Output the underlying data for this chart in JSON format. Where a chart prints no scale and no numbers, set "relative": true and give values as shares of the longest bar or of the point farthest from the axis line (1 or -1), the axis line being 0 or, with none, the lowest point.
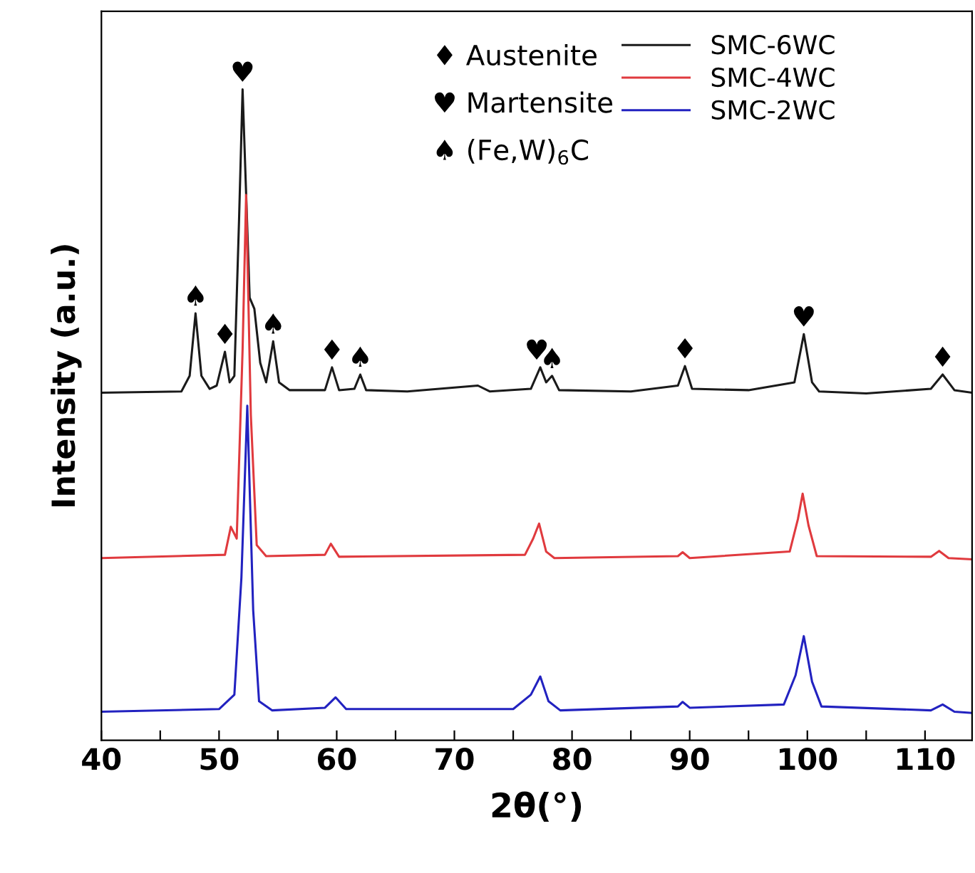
{
  "chart_data": {
    "type": "line",
    "relative": true,
    "xlabel": "2θ(°)",
    "ylabel": "Intensity (a.u.)",
    "xlim": [
      40,
      114
    ],
    "xticks": [
      40,
      {
        "value": 45,
        "label": null
      },
      50,
      {
        "value": 55,
        "label": null
      },
      60,
      {
        "value": 65,
        "label": null
      },
      70,
      {
        "value": 75,
        "label": null
      },
      80,
      {
        "value": 85,
        "label": null
      },
      90,
      {
        "value": 95,
        "label": null
      },
      100,
      {
        "value": 105,
        "label": null
      },
      110
    ],
    "tick_labels": "x",
    "grid": false,
    "legend": "top right",
    "marker": "none",
    "line_style": "solid",
    "series": [
      {
        "name": "SMC-6WC",
        "color": "#1a1a1a",
        "x": [
          40,
          46.8,
          47.5,
          48.0,
          48.5,
          49.2,
          49.8,
          50.5,
          50.9,
          51.3,
          51.7,
          52.0,
          52.6,
          53.0,
          53.5,
          54.0,
          54.6,
          55.1,
          56,
          59,
          59.6,
          60.2,
          61.5,
          62.0,
          62.5,
          66,
          72,
          73,
          76.5,
          77.3,
          77.8,
          78.3,
          78.9,
          85,
          89,
          89.6,
          90.2,
          95,
          98.9,
          99.7,
          100.4,
          101,
          105,
          110.5,
          111.5,
          112.5,
          114
        ],
        "values": [
          0.534,
          0.536,
          0.56,
          0.656,
          0.56,
          0.54,
          0.545,
          0.597,
          0.55,
          0.56,
          0.8,
          1.0,
          0.68,
          0.663,
          0.58,
          0.55,
          0.613,
          0.55,
          0.538,
          0.538,
          0.573,
          0.538,
          0.54,
          0.562,
          0.538,
          0.536,
          0.545,
          0.536,
          0.54,
          0.573,
          0.55,
          0.56,
          0.538,
          0.536,
          0.545,
          0.575,
          0.54,
          0.538,
          0.55,
          0.624,
          0.55,
          0.536,
          0.533,
          0.54,
          0.562,
          0.538,
          0.534
        ]
      },
      {
        "name": "SMC-4WC",
        "color": "#e03a3e",
        "x": [
          40,
          50.5,
          51.0,
          51.5,
          52.0,
          52.3,
          52.7,
          53.2,
          54,
          59,
          59.5,
          60.2,
          76,
          76.7,
          77.2,
          77.8,
          78.5,
          89,
          89.4,
          90,
          98.5,
          99.2,
          99.6,
          100.1,
          100.8,
          110.5,
          111.2,
          112,
          114
        ],
        "values": [
          0.28,
          0.285,
          0.328,
          0.31,
          0.6,
          0.838,
          0.5,
          0.3,
          0.283,
          0.285,
          0.302,
          0.282,
          0.285,
          0.31,
          0.333,
          0.29,
          0.28,
          0.283,
          0.289,
          0.28,
          0.29,
          0.34,
          0.379,
          0.33,
          0.283,
          0.282,
          0.291,
          0.28,
          0.278
        ]
      },
      {
        "name": "SMC-2WC",
        "color": "#2222c0",
        "x": [
          40,
          50,
          51.3,
          51.9,
          52.4,
          52.9,
          53.4,
          54.5,
          59,
          59.9,
          60.8,
          75,
          76.5,
          77.3,
          78.0,
          79,
          89,
          89.4,
          90,
          98,
          99.0,
          99.7,
          100.4,
          101.2,
          110.5,
          111.5,
          112.5,
          114
        ],
        "values": [
          0.044,
          0.048,
          0.07,
          0.25,
          0.514,
          0.2,
          0.06,
          0.046,
          0.05,
          0.066,
          0.048,
          0.048,
          0.07,
          0.098,
          0.06,
          0.046,
          0.052,
          0.059,
          0.05,
          0.055,
          0.1,
          0.16,
          0.09,
          0.052,
          0.046,
          0.055,
          0.044,
          0.042
        ]
      }
    ],
    "annotations": [
      "♦ Austenite",
      "♥ Martensite",
      "♠ (Fe,W)$_{6}$C",
      {
        "text": "♠",
        "x": 48.0,
        "y": 0.656
      },
      {
        "text": "♦",
        "x": 50.5,
        "y": 0.597
      },
      {
        "text": "♥",
        "x": 52.0,
        "y": 1.0
      },
      {
        "text": "♠",
        "x": 54.6,
        "y": 0.613
      },
      {
        "text": "♦",
        "x": 59.6,
        "y": 0.573
      },
      {
        "text": "♠",
        "x": 62.0,
        "y": 0.562
      },
      {
        "text": "♥",
        "x": 77.0,
        "y": 0.573
      },
      {
        "text": "♠",
        "x": 78.3,
        "y": 0.56
      },
      {
        "text": "♦",
        "x": 89.6,
        "y": 0.575
      },
      {
        "text": "♥",
        "x": 99.7,
        "y": 0.624
      },
      {
        "text": "♦",
        "x": 111.5,
        "y": 0.562
      }
    ]
  }
}
